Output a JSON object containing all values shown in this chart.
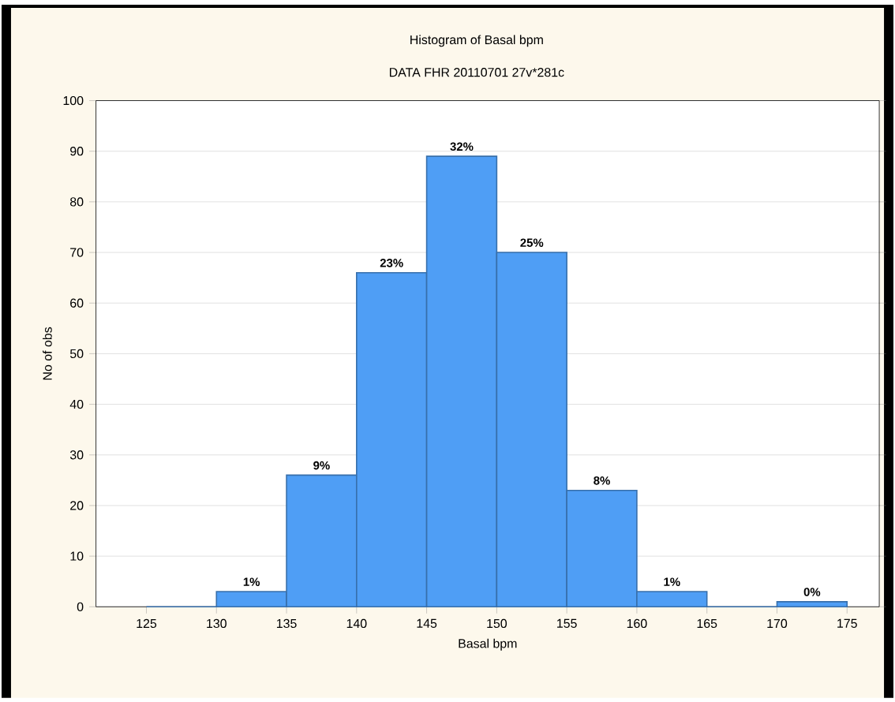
{
  "chart_data": {
    "type": "histogram",
    "title": "Histogram of Basal bpm",
    "subtitle": "DATA FHR 20110701 27v*281c",
    "xlabel": "Basal bpm",
    "ylabel": "No of obs",
    "bins": [
      125,
      130,
      135,
      140,
      145,
      150,
      155,
      160,
      165,
      170,
      175
    ],
    "values": [
      0,
      3,
      26,
      66,
      89,
      70,
      23,
      3,
      0,
      1
    ],
    "annotations": [
      {
        "text": "1%",
        "x": 132.5,
        "y": 3
      },
      {
        "text": "9%",
        "x": 137.5,
        "y": 26
      },
      {
        "text": "23%",
        "x": 142.5,
        "y": 66
      },
      {
        "text": "32%",
        "x": 147.5,
        "y": 89
      },
      {
        "text": "25%",
        "x": 152.5,
        "y": 70
      },
      {
        "text": "8%",
        "x": 157.5,
        "y": 23
      },
      {
        "text": "1%",
        "x": 162.5,
        "y": 3
      },
      {
        "text": "0%",
        "x": 172.5,
        "y": 1
      }
    ],
    "color": "#4f9ef5",
    "xlim": [
      121.4,
      177.3
    ],
    "xticks": [
      125,
      130,
      135,
      140,
      145,
      150,
      155,
      160,
      165,
      170,
      175
    ],
    "ylim": [
      0,
      100
    ],
    "yticks": [
      0,
      10,
      20,
      30,
      40,
      50,
      60,
      70,
      80,
      90,
      100
    ],
    "grid": "y"
  }
}
